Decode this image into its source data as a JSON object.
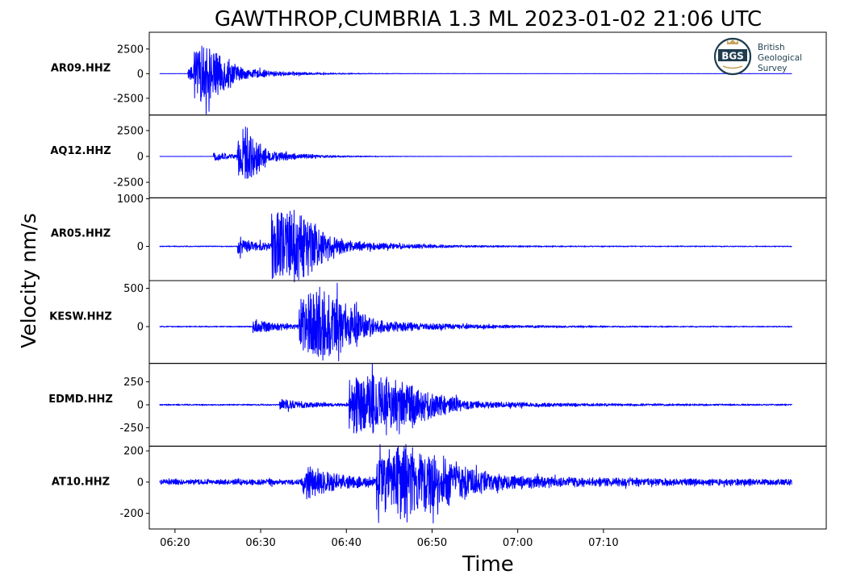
{
  "chart_data": {
    "type": "line",
    "title": "GAWTHROP,CUMBRIA 1.3 ML   2023-01-02 21:06 UTC",
    "xlabel": "Time",
    "ylabel": "Velocity nm/s",
    "x_range": [
      "06:16:30",
      "06:18:00"
    ],
    "x_axis": {
      "range_minutes": [
        -3,
        76
      ],
      "ticks": [
        {
          "minute": 0,
          "label": "06:20"
        },
        {
          "minute": 10,
          "label": "06:30"
        },
        {
          "minute": 20,
          "label": "06:40"
        },
        {
          "minute": 30,
          "label": "06:50"
        },
        {
          "minute": 40,
          "label": "07:00"
        },
        {
          "minute": 50,
          "label": "07:10"
        }
      ]
    },
    "grid": false,
    "line_color": "#0000ff",
    "logo": {
      "name": "BGS",
      "lines": [
        "British",
        "Geological",
        "Survey"
      ]
    },
    "panels": [
      {
        "station": "AR09.HHZ",
        "ylim": [
          -4200,
          4200
        ],
        "yticks": [
          {
            "value": 2500,
            "label": "2500"
          },
          {
            "value": 0,
            "label": "0"
          },
          {
            "value": -2500,
            "label": "-2500"
          }
        ],
        "noise": 10,
        "p_arrival_minute": 1.5,
        "s_arrival_minute": 3.5,
        "p_amp": 1500,
        "s_amp": 3000,
        "coda_decay": 0.18,
        "peak_width": 2.5
      },
      {
        "station": "AQ12.HHZ",
        "ylim": [
          -4000,
          4000
        ],
        "yticks": [
          {
            "value": 2500,
            "label": "2500"
          },
          {
            "value": 0,
            "label": "0"
          },
          {
            "value": -2500,
            "label": "-2500"
          }
        ],
        "noise": 10,
        "p_arrival_minute": 4.5,
        "s_arrival_minute": 8.0,
        "p_amp": 900,
        "s_amp": 3300,
        "coda_decay": 0.22,
        "peak_width": 1.5
      },
      {
        "station": "AR05.HHZ",
        "ylim": [
          -720,
          1020
        ],
        "yticks": [
          {
            "value": 1000,
            "label": "1000"
          },
          {
            "value": 0,
            "label": "0"
          }
        ],
        "noise": 12,
        "p_arrival_minute": 7.3,
        "s_arrival_minute": 13.0,
        "p_amp": 350,
        "s_amp": 950,
        "coda_decay": 0.14,
        "peak_width": 3.5
      },
      {
        "station": "KESW.HHZ",
        "ylim": [
          -480,
          600
        ],
        "yticks": [
          {
            "value": 500,
            "label": "500"
          },
          {
            "value": 0,
            "label": "0"
          }
        ],
        "noise": 8,
        "p_arrival_minute": 9.1,
        "s_arrival_minute": 16.5,
        "p_amp": 180,
        "s_amp": 550,
        "coda_decay": 0.11,
        "peak_width": 4.0
      },
      {
        "station": "EDMD.HHZ",
        "ylim": [
          -450,
          450
        ],
        "yticks": [
          {
            "value": 250,
            "label": "250"
          },
          {
            "value": 0,
            "label": "0"
          },
          {
            "value": -250,
            "label": "-250"
          }
        ],
        "noise": 9,
        "p_arrival_minute": 12.2,
        "s_arrival_minute": 23.0,
        "p_amp": 120,
        "s_amp": 400,
        "coda_decay": 0.1,
        "peak_width": 5.5
      },
      {
        "station": "AT10.HHZ",
        "ylim": [
          -300,
          230
        ],
        "yticks": [
          {
            "value": 200,
            "label": "200"
          },
          {
            "value": 0,
            "label": "0"
          },
          {
            "value": -200,
            "label": "-200"
          }
        ],
        "noise": 22,
        "p_arrival_minute": 14.8,
        "s_arrival_minute": 26.5,
        "p_amp": 210,
        "s_amp": 250,
        "coda_decay": 0.08,
        "peak_width": 6.0
      }
    ]
  }
}
